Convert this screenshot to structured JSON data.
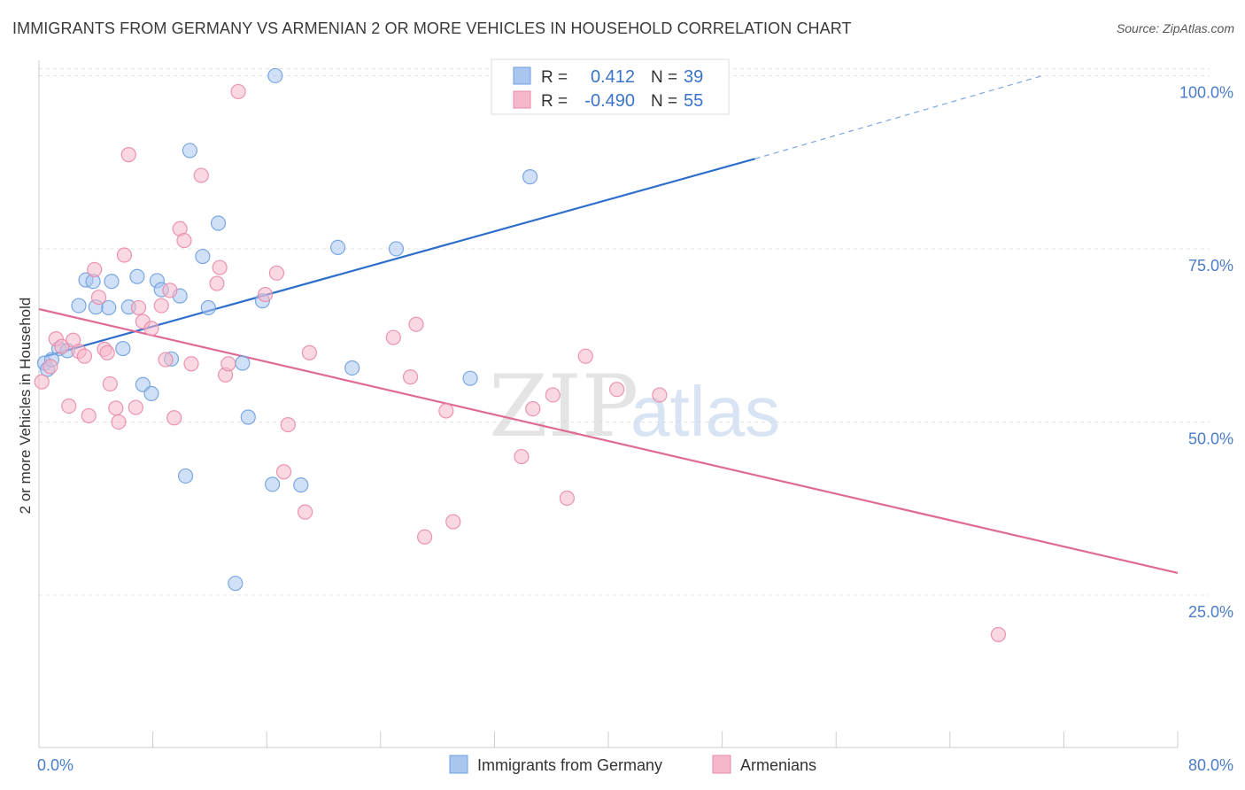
{
  "title": "IMMIGRANTS FROM GERMANY VS ARMENIAN 2 OR MORE VEHICLES IN HOUSEHOLD CORRELATION CHART",
  "source": "Source: ZipAtlas.com",
  "watermark": {
    "zip": "ZIP",
    "atlas": "atlas"
  },
  "legend_top": {
    "rows": [
      {
        "r_label": "R =",
        "r_value": "0.412",
        "n_label": "N =",
        "n_value": "39",
        "color": "#a9c6ef"
      },
      {
        "r_label": "R =",
        "r_value": "-0.490",
        "n_label": "N =",
        "n_value": "55",
        "color": "#f5b8cb"
      }
    ]
  },
  "chart_data": {
    "type": "scatter",
    "title": "IMMIGRANTS FROM GERMANY VS ARMENIAN 2 OR MORE VEHICLES IN HOUSEHOLD CORRELATION CHART",
    "xlabel": "",
    "ylabel": "2 or more Vehicles in Household",
    "xlim": [
      0,
      80
    ],
    "ylim": [
      3,
      103
    ],
    "x_tick_labels": {
      "min": "0.0%",
      "max": "80.0%"
    },
    "y_ticks": [
      {
        "value": 100,
        "label": "100.0%"
      },
      {
        "value": 75,
        "label": "75.0%"
      },
      {
        "value": 50,
        "label": "50.0%"
      },
      {
        "value": 25,
        "label": "25.0%"
      }
    ],
    "grid": true,
    "legend_position": "bottom",
    "series": [
      {
        "name": "Immigrants from Germany",
        "color": "#6f9fe0",
        "fill": "#a9c6ef",
        "trend": {
          "x0": 0.5,
          "y0": 59.5,
          "x1": 50.3,
          "y1": 88.0,
          "dash_to_x": 70.5,
          "dash_to_y": 100.0
        },
        "points": [
          [
            0.4,
            58.5
          ],
          [
            0.6,
            57.6
          ],
          [
            1.4,
            60.6
          ],
          [
            2.0,
            60.3
          ],
          [
            2.8,
            66.8
          ],
          [
            3.3,
            70.5
          ],
          [
            3.8,
            70.3
          ],
          [
            4.0,
            66.6
          ],
          [
            4.9,
            66.5
          ],
          [
            5.1,
            70.3
          ],
          [
            5.9,
            60.6
          ],
          [
            6.3,
            66.6
          ],
          [
            6.9,
            71.0
          ],
          [
            7.3,
            55.4
          ],
          [
            7.9,
            54.1
          ],
          [
            8.3,
            70.4
          ],
          [
            8.6,
            69.1
          ],
          [
            9.3,
            59.1
          ],
          [
            9.9,
            68.2
          ],
          [
            10.3,
            42.2
          ],
          [
            10.6,
            89.2
          ],
          [
            11.5,
            73.9
          ],
          [
            11.9,
            66.5
          ],
          [
            12.6,
            78.7
          ],
          [
            13.8,
            26.7
          ],
          [
            14.3,
            58.5
          ],
          [
            14.7,
            50.7
          ],
          [
            15.7,
            67.5
          ],
          [
            16.4,
            41.0
          ],
          [
            16.6,
            100.0
          ],
          [
            18.4,
            40.9
          ],
          [
            21.0,
            75.2
          ],
          [
            22.0,
            57.8
          ],
          [
            25.1,
            75.0
          ],
          [
            30.3,
            56.3
          ],
          [
            34.5,
            85.4
          ],
          [
            40.0,
            100.0
          ],
          [
            47.7,
            100.0
          ],
          [
            0.9,
            59.0
          ]
        ]
      },
      {
        "name": "Armenians",
        "color": "#e98aa9",
        "fill": "#f5b8cb",
        "trend": {
          "x0": 0.0,
          "y0": 66.3,
          "x1": 80.0,
          "y1": 28.2
        },
        "points": [
          [
            0.2,
            55.8
          ],
          [
            0.8,
            58.0
          ],
          [
            1.2,
            62.0
          ],
          [
            1.6,
            60.9
          ],
          [
            2.1,
            52.3
          ],
          [
            2.4,
            61.8
          ],
          [
            2.8,
            60.2
          ],
          [
            3.2,
            59.5
          ],
          [
            3.5,
            50.9
          ],
          [
            3.9,
            72.0
          ],
          [
            4.2,
            68.0
          ],
          [
            4.6,
            60.5
          ],
          [
            5.0,
            55.5
          ],
          [
            5.4,
            52.0
          ],
          [
            5.6,
            50.0
          ],
          [
            6.0,
            74.1
          ],
          [
            6.3,
            88.6
          ],
          [
            6.8,
            52.1
          ],
          [
            7.0,
            66.5
          ],
          [
            7.3,
            64.5
          ],
          [
            7.9,
            63.5
          ],
          [
            8.6,
            66.8
          ],
          [
            8.9,
            59.0
          ],
          [
            9.2,
            69.0
          ],
          [
            9.5,
            50.6
          ],
          [
            9.9,
            77.9
          ],
          [
            10.2,
            76.2
          ],
          [
            10.7,
            58.4
          ],
          [
            11.4,
            85.6
          ],
          [
            12.5,
            70.0
          ],
          [
            12.7,
            72.3
          ],
          [
            13.1,
            56.8
          ],
          [
            13.3,
            58.4
          ],
          [
            14.0,
            97.7
          ],
          [
            16.7,
            71.5
          ],
          [
            15.9,
            68.4
          ],
          [
            17.2,
            42.8
          ],
          [
            17.5,
            49.6
          ],
          [
            18.7,
            37.0
          ],
          [
            19.0,
            60.0
          ],
          [
            24.9,
            62.2
          ],
          [
            26.1,
            56.5
          ],
          [
            26.5,
            64.1
          ],
          [
            27.1,
            33.4
          ],
          [
            28.6,
            51.6
          ],
          [
            29.1,
            35.6
          ],
          [
            33.9,
            45.0
          ],
          [
            34.7,
            51.9
          ],
          [
            36.1,
            53.9
          ],
          [
            37.1,
            39.0
          ],
          [
            38.4,
            59.5
          ],
          [
            40.6,
            54.7
          ],
          [
            43.6,
            53.9
          ],
          [
            67.4,
            19.3
          ],
          [
            4.8,
            60.0
          ]
        ]
      }
    ]
  }
}
